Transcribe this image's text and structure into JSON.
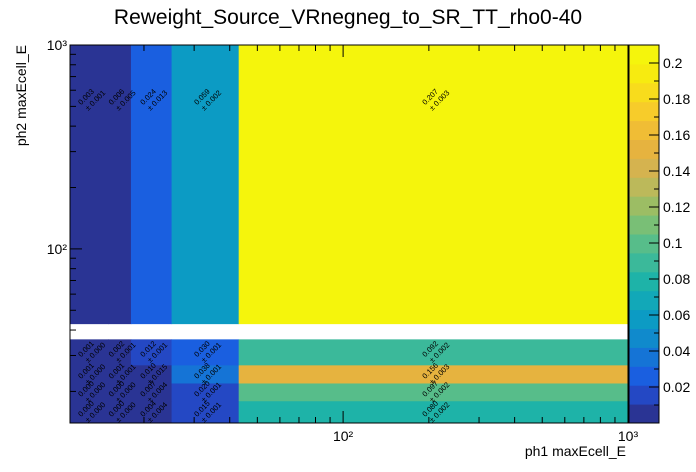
{
  "chart_data": {
    "type": "heatmap",
    "title": "Reweight_Source_VRnegneg_to_SR_TT_rho0-40",
    "xlabel": "ph1 maxEcell_E",
    "ylabel": "ph2 maxEcell_E",
    "x_scale": "log",
    "y_scale": "log",
    "xlim": [
      11,
      1000
    ],
    "ylim": [
      14,
      1000
    ],
    "x_ticks": [
      {
        "value": 100,
        "label": "10²"
      },
      {
        "value": 1000,
        "label": "10³"
      }
    ],
    "y_ticks": [
      {
        "value": 100,
        "label": "10²"
      },
      {
        "value": 1000,
        "label": "10³"
      }
    ],
    "x_bin_edges": [
      11,
      15,
      18,
      25,
      43,
      1000
    ],
    "y_bin_edges": [
      14,
      18,
      22,
      27,
      36,
      43,
      1000
    ],
    "z_range": [
      0,
      0.21
    ],
    "colorbar_ticks": [
      0.02,
      0.04,
      0.06,
      0.08,
      0.1,
      0.12,
      0.14,
      0.16,
      0.18,
      0.2
    ],
    "colorbar_levels": [
      "#2a3494",
      "#2448c4",
      "#1a5fe0",
      "#1574d6",
      "#108acc",
      "#0c9bc4",
      "#12a8b8",
      "#1eb3a8",
      "#3bb99a",
      "#57bd8a",
      "#79bf76",
      "#9cbd64",
      "#bcb95a",
      "#d5b34f",
      "#e6b33f",
      "#f0bd35",
      "#f7cc2a",
      "#f8dc1c",
      "#f7eb10",
      "#f5f50c"
    ],
    "cells": [
      {
        "xi": 0,
        "yi": 0,
        "value": 0.0,
        "label": "0.000",
        "err": "± 0.000"
      },
      {
        "xi": 1,
        "yi": 0,
        "value": 0.0,
        "label": "0.000",
        "err": "± 0.000"
      },
      {
        "xi": 2,
        "yi": 0,
        "value": 0.004,
        "label": "0.004",
        "err": "± 0.004"
      },
      {
        "xi": 3,
        "yi": 0,
        "value": 0.015,
        "label": "0.015",
        "err": "± 0.001"
      },
      {
        "xi": 4,
        "yi": 0,
        "value": 0.08,
        "label": "0.080",
        "err": "± 0.002"
      },
      {
        "xi": 0,
        "yi": 1,
        "value": 0.0,
        "label": "0.000",
        "err": "± 0.000"
      },
      {
        "xi": 1,
        "yi": 1,
        "value": 0.0,
        "label": "0.000",
        "err": "± 0.000"
      },
      {
        "xi": 2,
        "yi": 1,
        "value": 0.007,
        "label": "0.007",
        "err": "± 0.004"
      },
      {
        "xi": 3,
        "yi": 1,
        "value": 0.02,
        "label": "0.020",
        "err": "± 0.001"
      },
      {
        "xi": 4,
        "yi": 1,
        "value": 0.097,
        "label": "0.097",
        "err": "± 0.002"
      },
      {
        "xi": 0,
        "yi": 2,
        "value": 0.001,
        "label": "0.001",
        "err": "± 0.000"
      },
      {
        "xi": 1,
        "yi": 2,
        "value": 0.001,
        "label": "0.001",
        "err": "± 0.001"
      },
      {
        "xi": 2,
        "yi": 2,
        "value": 0.01,
        "label": "0.010",
        "err": "± 0.015"
      },
      {
        "xi": 3,
        "yi": 2,
        "value": 0.038,
        "label": "0.038",
        "err": "± 0.001"
      },
      {
        "xi": 4,
        "yi": 2,
        "value": 0.156,
        "label": "0.156",
        "err": "± 0.003"
      },
      {
        "xi": 0,
        "yi": 3,
        "value": 0.001,
        "label": "0.001",
        "err": "± 0.000"
      },
      {
        "xi": 1,
        "yi": 3,
        "value": 0.002,
        "label": "0.002",
        "err": "± 0.001"
      },
      {
        "xi": 2,
        "yi": 3,
        "value": 0.012,
        "label": "0.012",
        "err": "± 0.001"
      },
      {
        "xi": 3,
        "yi": 3,
        "value": 0.03,
        "label": "0.030",
        "err": "± 0.001"
      },
      {
        "xi": 4,
        "yi": 3,
        "value": 0.092,
        "label": "0.092",
        "err": "± 0.002"
      },
      {
        "xi": 0,
        "yi": 5,
        "value": 0.003,
        "label": "0.003",
        "err": "± 0.001"
      },
      {
        "xi": 1,
        "yi": 5,
        "value": 0.006,
        "label": "0.006",
        "err": "± 0.005"
      },
      {
        "xi": 2,
        "yi": 5,
        "value": 0.024,
        "label": "0.024",
        "err": "± 0.013"
      },
      {
        "xi": 3,
        "yi": 5,
        "value": 0.059,
        "label": "0.059",
        "err": "± 0.002"
      },
      {
        "xi": 4,
        "yi": 5,
        "value": 0.207,
        "label": "0.207",
        "err": "± 0.003"
      }
    ]
  }
}
